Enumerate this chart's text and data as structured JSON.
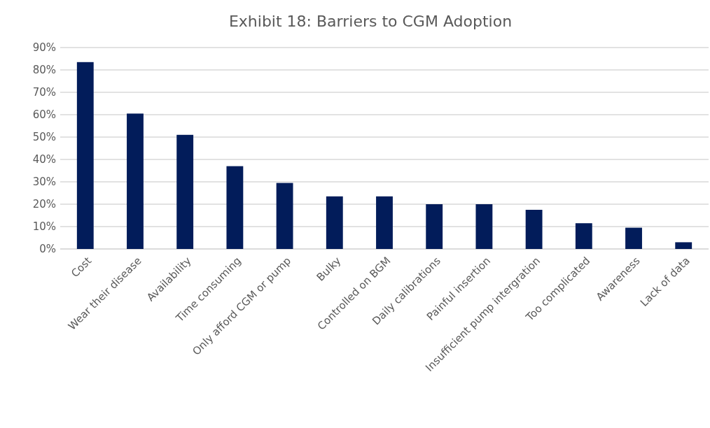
{
  "chart_data": {
    "type": "bar",
    "title": "Exhibit 18: Barriers to CGM Adoption",
    "categories": [
      "Cost",
      "Wear their disease",
      "Availability",
      "Time consuming",
      "Only afford CGM or pump",
      "Bulky",
      "Controlled on BGM",
      "Daily calibrations",
      "Painful insertion",
      "Insufficient pump intergration",
      "Too complicated",
      "Awareness",
      "Lack of data"
    ],
    "values": [
      83.5,
      60.5,
      51,
      37,
      29.5,
      23.5,
      23.5,
      20,
      20,
      17.5,
      11.5,
      9.5,
      3
    ],
    "color": "#021c5a",
    "ylim": [
      0,
      90
    ],
    "yticks": [
      {
        "value": 0,
        "label": "0%"
      },
      {
        "value": 10,
        "label": "10%"
      },
      {
        "value": 20,
        "label": "20%"
      },
      {
        "value": 30,
        "label": "30%"
      },
      {
        "value": 40,
        "label": "40%"
      },
      {
        "value": 50,
        "label": "50%"
      },
      {
        "value": 60,
        "label": "60%"
      },
      {
        "value": 70,
        "label": "70%"
      },
      {
        "value": 80,
        "label": "80%"
      },
      {
        "value": 90,
        "label": "90%"
      }
    ],
    "grid": "y"
  }
}
